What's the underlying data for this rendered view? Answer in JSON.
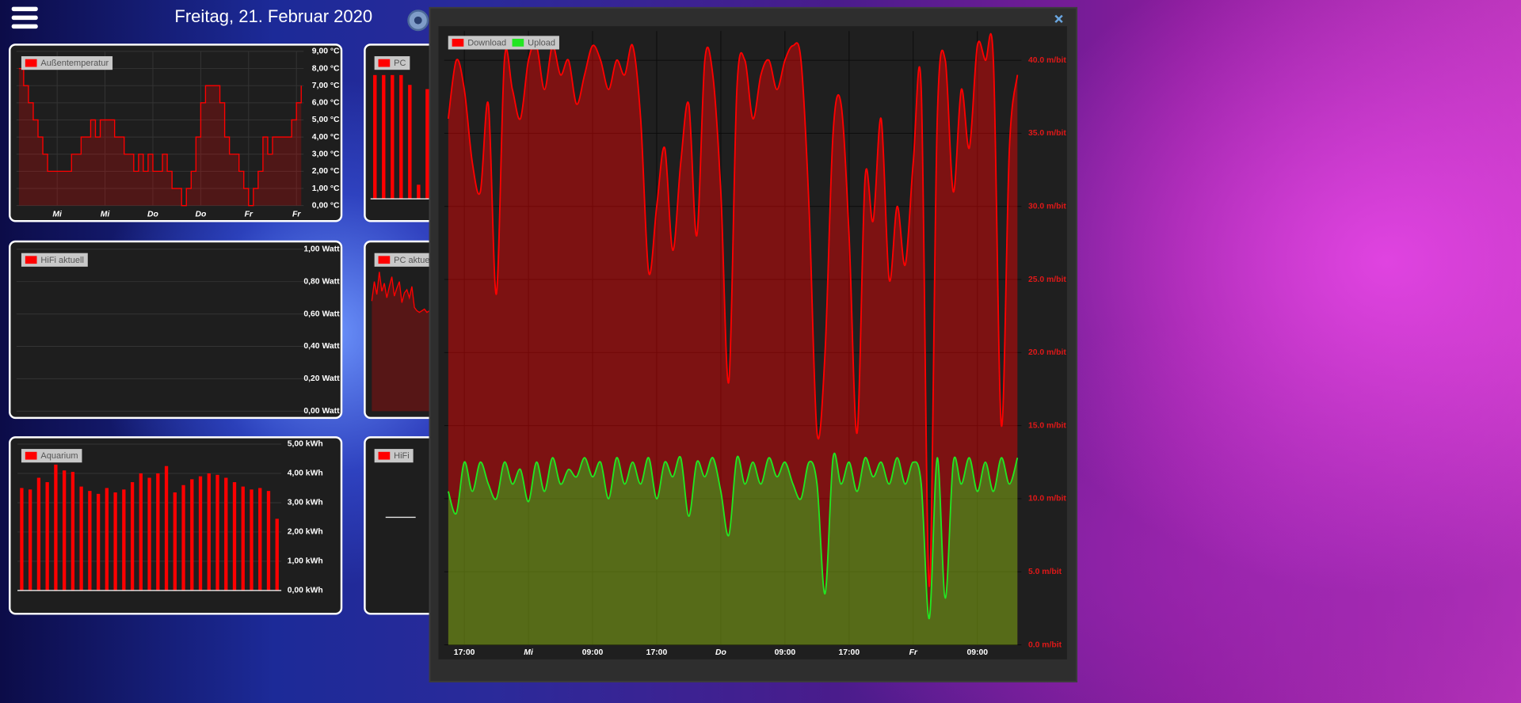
{
  "header": {
    "title": "Freitag, 21. Februar 2020"
  },
  "chart_data": [
    {
      "type": "line",
      "step": true,
      "grid": true,
      "fill_opacity": 0.22,
      "series": [
        {
          "name": "Außentemperatur",
          "color": "#ff0000",
          "values": [
            8,
            7,
            6,
            5,
            4,
            3,
            2,
            2,
            2,
            2,
            2,
            3,
            3,
            4,
            4,
            5,
            4,
            5,
            5,
            5,
            4,
            4,
            3,
            3,
            2,
            3,
            2,
            3,
            2,
            2,
            3,
            2,
            1,
            1,
            0,
            1,
            2,
            4,
            6,
            7,
            7,
            7,
            6,
            4,
            3,
            3,
            2,
            1,
            0,
            1,
            2,
            4,
            3,
            4,
            4,
            4,
            4,
            5,
            6,
            7
          ]
        }
      ],
      "categories": [
        null,
        null,
        null,
        null,
        null,
        null,
        null,
        null,
        "Mi",
        null,
        null,
        null,
        null,
        null,
        null,
        null,
        null,
        null,
        "Mi",
        null,
        null,
        null,
        null,
        null,
        null,
        null,
        null,
        null,
        "Do",
        null,
        null,
        null,
        null,
        null,
        null,
        null,
        null,
        null,
        "Do",
        null,
        null,
        null,
        null,
        null,
        null,
        null,
        null,
        null,
        "Fr",
        null,
        null,
        null,
        null,
        null,
        null,
        null,
        null,
        null,
        "Fr",
        null
      ],
      "ylim": [
        0,
        9
      ],
      "yticks": [
        {
          "value": 0,
          "label": "0,00 °C"
        },
        {
          "value": 1,
          "label": "1,00 °C"
        },
        {
          "value": 2,
          "label": "2,00 °C"
        },
        {
          "value": 3,
          "label": "3,00 °C"
        },
        {
          "value": 4,
          "label": "4,00 °C"
        },
        {
          "value": 5,
          "label": "5,00 °C"
        },
        {
          "value": 6,
          "label": "6,00 °C"
        },
        {
          "value": 7,
          "label": "7,00 °C"
        },
        {
          "value": 8,
          "label": "8,00 °C"
        },
        {
          "value": 9,
          "label": "9,00 °C"
        }
      ]
    },
    {
      "type": "line",
      "grid": true,
      "series": [
        {
          "name": "HiFi aktuell",
          "color": "#ff0000",
          "values": []
        }
      ],
      "ylim": [
        0,
        1
      ],
      "yticks": [
        {
          "value": 0,
          "label": "0,00 Watt"
        },
        {
          "value": 0.2,
          "label": "0,20 Watt"
        },
        {
          "value": 0.4,
          "label": "0,40 Watt"
        },
        {
          "value": 0.6,
          "label": "0,60 Watt"
        },
        {
          "value": 0.8,
          "label": "0,80 Watt"
        },
        {
          "value": 1,
          "label": "1,00 Watt"
        }
      ]
    },
    {
      "type": "bar",
      "grid": true,
      "series": [
        {
          "name": "Aquarium",
          "color": "#ff0000",
          "values": [
            3.5,
            3.45,
            3.85,
            3.7,
            4.3,
            4.1,
            4.05,
            3.55,
            3.4,
            3.3,
            3.5,
            3.35,
            3.45,
            3.7,
            4.0,
            3.85,
            4.0,
            4.25,
            3.35,
            3.6,
            3.8,
            3.9,
            4.0,
            3.95,
            3.85,
            3.7,
            3.55,
            3.45,
            3.5,
            3.4,
            2.45
          ]
        }
      ],
      "ylim": [
        0,
        5
      ],
      "yticks": [
        {
          "value": 0,
          "label": "0,00 kWh"
        },
        {
          "value": 1,
          "label": "1,00 kWh"
        },
        {
          "value": 2,
          "label": "2,00 kWh"
        },
        {
          "value": 3,
          "label": "3,00 kWh"
        },
        {
          "value": 4,
          "label": "4,00 kWh"
        },
        {
          "value": 5,
          "label": "5,00 kWh"
        }
      ]
    },
    {
      "type": "bar",
      "series": [
        {
          "name": "PC",
          "color": "#ff0000",
          "values": [
            88,
            88,
            88,
            88,
            81,
            10,
            78
          ]
        }
      ],
      "ylim": [
        0,
        100
      ]
    },
    {
      "type": "line",
      "fill_opacity": 0.25,
      "series": [
        {
          "name": "PC aktuell",
          "color": "#ff0000",
          "values": [
            68,
            80,
            72,
            86,
            74,
            79,
            70,
            77,
            83,
            71,
            76,
            80,
            67,
            73,
            75,
            70,
            77,
            64,
            62,
            61,
            62,
            63,
            61,
            62
          ]
        }
      ],
      "ylim": [
        0,
        100
      ]
    },
    {
      "type": "line",
      "line_color": "#e6e6e6",
      "series": [
        {
          "name": "HiFi",
          "color": "#ff0000",
          "values": [
            50,
            50
          ]
        }
      ],
      "ylim": [
        0,
        100
      ]
    },
    {
      "type": "line",
      "smooth": true,
      "grid": true,
      "fill_opacity": 0.42,
      "series": [
        {
          "name": "Download",
          "color": "#ff0000",
          "values": [
            36,
            40,
            38,
            33,
            31,
            37,
            24,
            40,
            38,
            36,
            40,
            41,
            38,
            41,
            39,
            40,
            37,
            39,
            41,
            40,
            38,
            40,
            39,
            41,
            36,
            25.5,
            30,
            34,
            27,
            33,
            37,
            28,
            40,
            39,
            31,
            18,
            38,
            40,
            36,
            39,
            40,
            38,
            40,
            41,
            40,
            30,
            14.5,
            20,
            35,
            37,
            28,
            14.5,
            32,
            29,
            36,
            25,
            30,
            26,
            33,
            38,
            4,
            36,
            40,
            31,
            38,
            34,
            41,
            40,
            40,
            15,
            34,
            39
          ]
        },
        {
          "name": "Upload",
          "color": "#22e622",
          "values": [
            10.5,
            9,
            12.5,
            10.5,
            12.5,
            11,
            10,
            12.5,
            11,
            12,
            9.8,
            12.5,
            10.5,
            12.8,
            11,
            12,
            11.5,
            12.8,
            11.5,
            12.5,
            10,
            12.8,
            11,
            12.5,
            11,
            12.8,
            10,
            12.5,
            11.5,
            12.8,
            8.8,
            12.5,
            11.5,
            12.8,
            10.5,
            7.5,
            12.8,
            11,
            12.5,
            11,
            12.8,
            11.5,
            12.5,
            11,
            10,
            12.5,
            11,
            3.5,
            12.8,
            11,
            12.5,
            10.5,
            12.8,
            11.5,
            12.5,
            11,
            12.8,
            11,
            12.5,
            11,
            1.8,
            12.8,
            3.2,
            12.5,
            11,
            12.8,
            10.5,
            12.5,
            10.5,
            12.8,
            11,
            12.8
          ]
        }
      ],
      "categories": [
        null,
        null,
        "17:00",
        null,
        null,
        null,
        null,
        null,
        null,
        null,
        "Mi",
        null,
        null,
        null,
        null,
        null,
        null,
        null,
        "09:00",
        null,
        null,
        null,
        null,
        null,
        null,
        null,
        "17:00",
        null,
        null,
        null,
        null,
        null,
        null,
        null,
        "Do",
        null,
        null,
        null,
        null,
        null,
        null,
        null,
        "09:00",
        null,
        null,
        null,
        null,
        null,
        null,
        null,
        "17:00",
        null,
        null,
        null,
        null,
        null,
        null,
        null,
        "Fr",
        null,
        null,
        null,
        null,
        null,
        null,
        null,
        "09:00",
        null,
        null,
        null,
        null,
        null
      ],
      "ylim": [
        0,
        42
      ],
      "yticks": [
        {
          "value": 0,
          "label": "0.0 m/bit"
        },
        {
          "value": 5,
          "label": "5.0 m/bit"
        },
        {
          "value": 10,
          "label": "10.0 m/bit"
        },
        {
          "value": 15,
          "label": "15.0 m/bit"
        },
        {
          "value": 20,
          "label": "20.0 m/bit"
        },
        {
          "value": 25,
          "label": "25.0 m/bit"
        },
        {
          "value": 30,
          "label": "30.0 m/bit"
        },
        {
          "value": 35,
          "label": "35.0 m/bit"
        },
        {
          "value": 40,
          "label": "40.0 m/bit"
        }
      ]
    }
  ]
}
